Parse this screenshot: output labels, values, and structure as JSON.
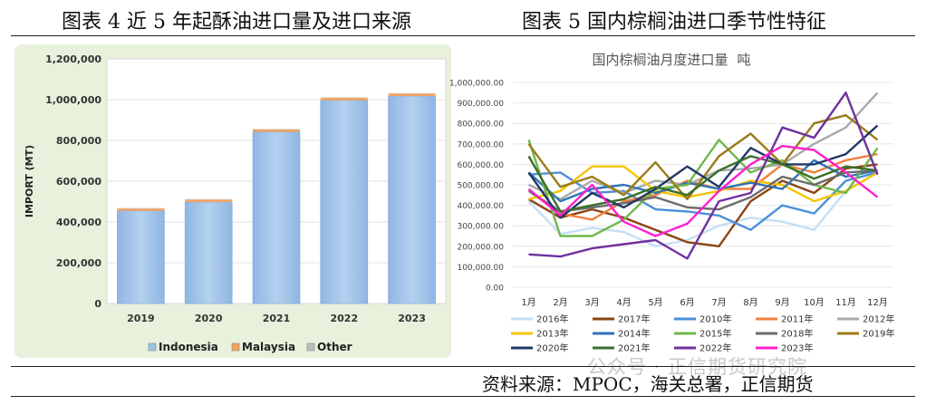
{
  "figure4_title": "图表 4 近 5 年起酥油进口量及进口来源",
  "figure5_title": "图表 5 国内棕榈油进口季节性特征",
  "source": "资料来源：MPOC，海关总署，正信期货",
  "watermark": "公众号 · 正信期货研究院",
  "chart_data": [
    {
      "type": "bar",
      "stacked": true,
      "title": "",
      "xlabel": "",
      "ylabel": "IMPORT (MT)",
      "ylim": [
        0,
        1200000
      ],
      "yticks": [
        0,
        200000,
        400000,
        600000,
        800000,
        1000000,
        1200000
      ],
      "ytick_labels": [
        "0",
        "200,000",
        "400,000",
        "600,000",
        "800,000",
        "1,000,000",
        "1,200,000"
      ],
      "categories": [
        "2019",
        "2020",
        "2021",
        "2022",
        "2023"
      ],
      "series": [
        {
          "name": "Indonesia",
          "color": "#9dc3e6",
          "values": [
            455000,
            498000,
            842000,
            997000,
            1018000
          ]
        },
        {
          "name": "Malaysia",
          "color": "#f4a460",
          "values": [
            11000,
            12000,
            12000,
            12000,
            12000
          ]
        },
        {
          "name": "Other",
          "color": "#bfbfbf",
          "values": [
            2000,
            2000,
            2000,
            2000,
            2000
          ]
        }
      ],
      "legend_position": "bottom",
      "background": "#e7f1dc"
    },
    {
      "type": "line",
      "title": "国内棕榈油月度进口量",
      "unit": "吨",
      "ylim": [
        0,
        1000000
      ],
      "yticks": [
        0,
        100000,
        200000,
        300000,
        400000,
        500000,
        600000,
        700000,
        800000,
        900000,
        1000000
      ],
      "ytick_labels": [
        "0.00",
        "100,000.00",
        "200,000.00",
        "300,000.00",
        "400,000.00",
        "500,000.00",
        "600,000.00",
        "700,000.00",
        "800,000.00",
        "900,000.00",
        "1,000,000.00"
      ],
      "categories": [
        "1月",
        "2月",
        "3月",
        "4月",
        "5月",
        "6月",
        "7月",
        "8月",
        "9月",
        "10月",
        "11月",
        "12月"
      ],
      "series": [
        {
          "name": "2016年",
          "color": "#c5dff5",
          "values": [
            420000,
            260000,
            290000,
            270000,
            200000,
            230000,
            300000,
            340000,
            320000,
            280000,
            470000,
            560000
          ]
        },
        {
          "name": "2017年",
          "color": "#8b4513",
          "values": [
            430000,
            340000,
            380000,
            340000,
            280000,
            220000,
            200000,
            420000,
            520000,
            460000,
            580000,
            600000
          ]
        },
        {
          "name": "2010年",
          "color": "#4a90d9",
          "values": [
            550000,
            560000,
            460000,
            470000,
            380000,
            370000,
            350000,
            280000,
            400000,
            360000,
            520000,
            560000
          ]
        },
        {
          "name": "2011年",
          "color": "#f08040",
          "values": [
            470000,
            360000,
            330000,
            420000,
            450000,
            520000,
            480000,
            480000,
            600000,
            560000,
            620000,
            650000
          ]
        },
        {
          "name": "2012年",
          "color": "#a9a9a9",
          "values": [
            500000,
            430000,
            520000,
            460000,
            520000,
            500000,
            570000,
            580000,
            600000,
            700000,
            780000,
            950000
          ]
        },
        {
          "name": "2013年",
          "color": "#f5c400",
          "values": [
            430000,
            470000,
            590000,
            590000,
            470000,
            440000,
            470000,
            520000,
            500000,
            420000,
            470000,
            560000
          ]
        },
        {
          "name": "2014年",
          "color": "#2e75b6",
          "values": [
            560000,
            420000,
            480000,
            500000,
            460000,
            510000,
            480000,
            510000,
            480000,
            620000,
            540000,
            570000
          ]
        },
        {
          "name": "2015年",
          "color": "#70b84c",
          "values": [
            720000,
            250000,
            250000,
            330000,
            480000,
            500000,
            720000,
            560000,
            620000,
            500000,
            460000,
            680000
          ]
        },
        {
          "name": "2018年",
          "color": "#6b6b6b",
          "values": [
            470000,
            370000,
            390000,
            410000,
            440000,
            390000,
            380000,
            440000,
            540000,
            500000,
            560000,
            570000
          ]
        },
        {
          "name": "2019年",
          "color": "#9b7b17",
          "values": [
            700000,
            490000,
            540000,
            450000,
            610000,
            430000,
            640000,
            750000,
            600000,
            800000,
            840000,
            720000
          ]
        },
        {
          "name": "2020年",
          "color": "#1f3864",
          "values": [
            560000,
            340000,
            460000,
            390000,
            480000,
            590000,
            490000,
            680000,
            600000,
            600000,
            650000,
            790000
          ]
        },
        {
          "name": "2021年",
          "color": "#3b6e2a",
          "values": [
            640000,
            370000,
            400000,
            430000,
            490000,
            450000,
            570000,
            640000,
            600000,
            530000,
            590000,
            570000
          ]
        },
        {
          "name": "2022年",
          "color": "#7030a0",
          "values": [
            160000,
            150000,
            190000,
            210000,
            230000,
            140000,
            420000,
            460000,
            780000,
            730000,
            950000,
            550000
          ]
        },
        {
          "name": "2023年",
          "color": "#ff1fd0",
          "values": [
            480000,
            350000,
            500000,
            320000,
            250000,
            310000,
            470000,
            600000,
            690000,
            670000,
            560000,
            440000
          ]
        }
      ],
      "legend_position": "bottom"
    }
  ]
}
